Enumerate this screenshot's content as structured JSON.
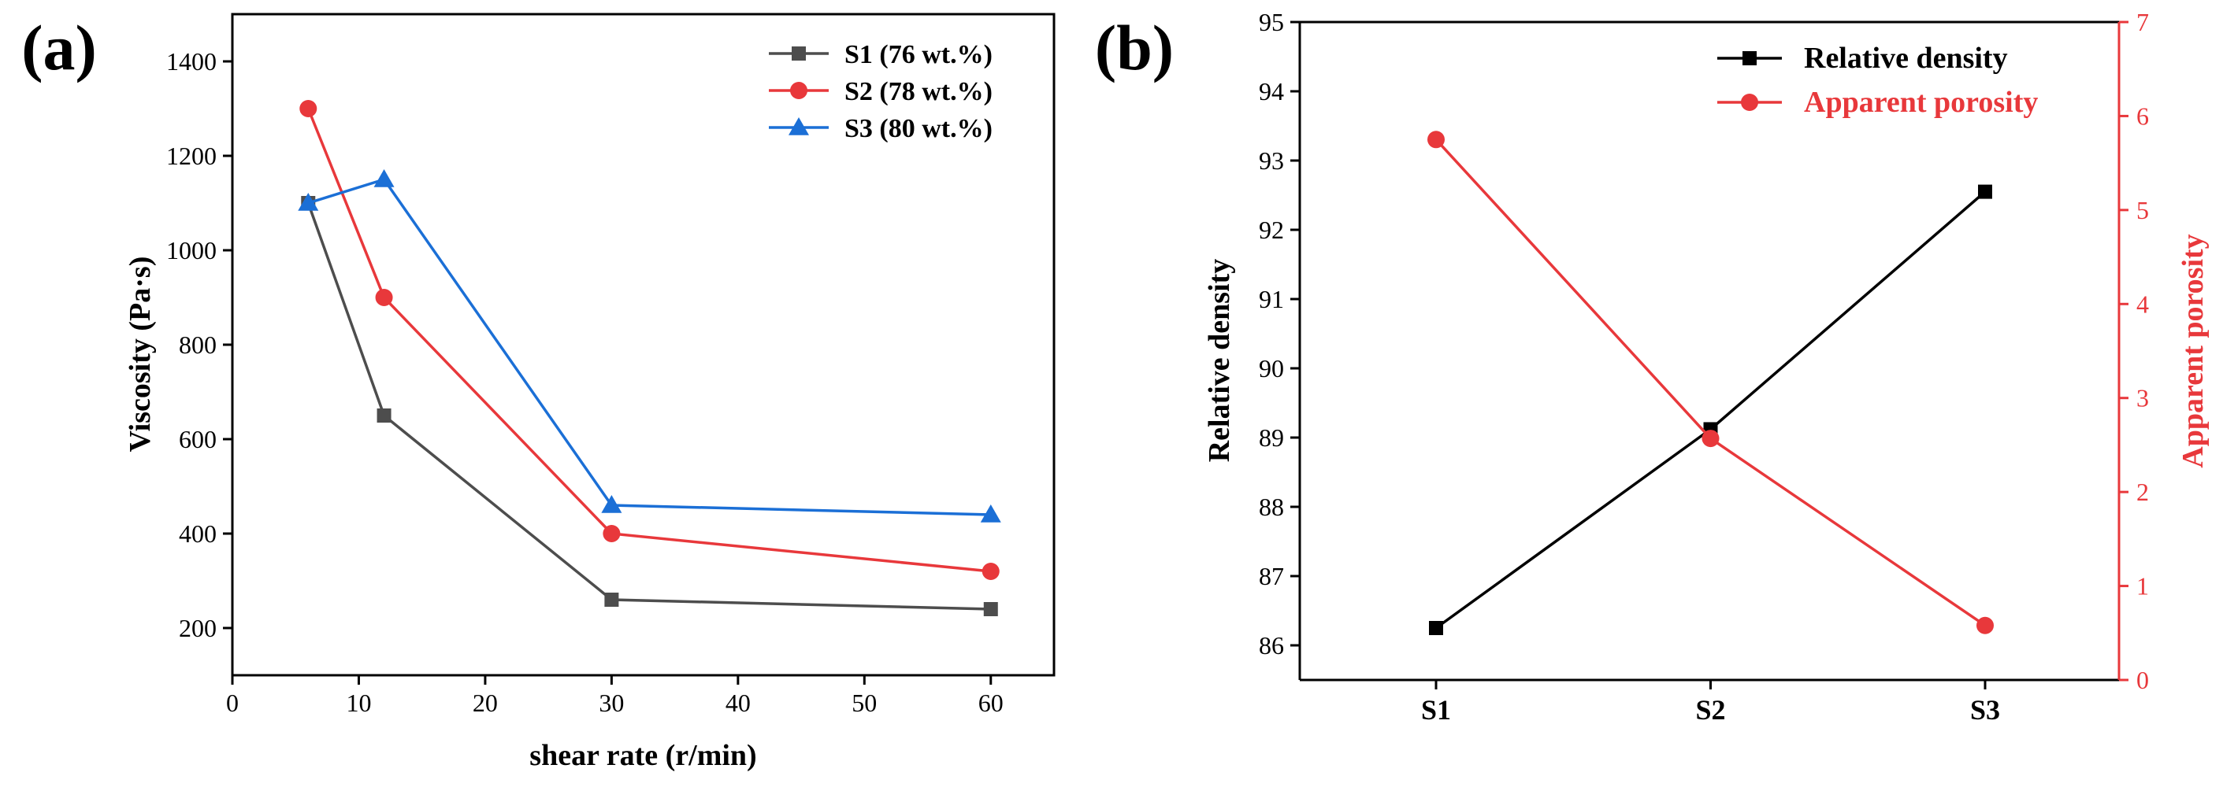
{
  "chart_data": [
    {
      "panel_label": "(a)",
      "type": "line",
      "title": "",
      "xlabel": "shear rate (r/min)",
      "ylabel": "Viscosity (Pa·s)",
      "xlim": [
        0,
        65
      ],
      "ylim": [
        100,
        1500
      ],
      "xticks": [
        0,
        10,
        20,
        30,
        40,
        50,
        60
      ],
      "yticks": [
        200,
        400,
        600,
        800,
        1000,
        1200,
        1400
      ],
      "legend_position": "top-right",
      "series": [
        {
          "name": "S1 (76 wt.%)",
          "color": "#4d4d4d",
          "marker": "square",
          "x": [
            6,
            12,
            30,
            60
          ],
          "values": [
            1100,
            650,
            260,
            240
          ]
        },
        {
          "name": "S2 (78 wt.%)",
          "color": "#e8383b",
          "marker": "circle",
          "x": [
            6,
            12,
            30,
            60
          ],
          "values": [
            1300,
            900,
            400,
            320
          ]
        },
        {
          "name": "S3 (80 wt.%)",
          "color": "#1b6fd6",
          "marker": "triangle",
          "x": [
            6,
            12,
            30,
            60
          ],
          "values": [
            1100,
            1150,
            460,
            440
          ]
        }
      ]
    },
    {
      "panel_label": "(b)",
      "type": "line",
      "title": "",
      "xlabel": "",
      "categories": [
        "S1",
        "S2",
        "S3"
      ],
      "ylabel": "Relative density",
      "ylim": [
        85.5,
        95
      ],
      "yticks": [
        86,
        87,
        88,
        89,
        90,
        91,
        92,
        93,
        94,
        95
      ],
      "ylabel_right": "Apparent porosity",
      "ylim_right": [
        0,
        7
      ],
      "yticks_right": [
        0,
        1,
        2,
        3,
        4,
        5,
        6,
        7
      ],
      "right_axis_color": "#e8383b",
      "legend_position": "top-right",
      "series": [
        {
          "name": "Relative density",
          "color": "#000000",
          "marker": "square",
          "axis": "left",
          "values": [
            86.25,
            89.12,
            92.55
          ]
        },
        {
          "name": "Apparent porosity",
          "color": "#e8383b",
          "marker": "circle",
          "axis": "right",
          "values": [
            5.75,
            2.57,
            0.58
          ]
        }
      ]
    }
  ]
}
